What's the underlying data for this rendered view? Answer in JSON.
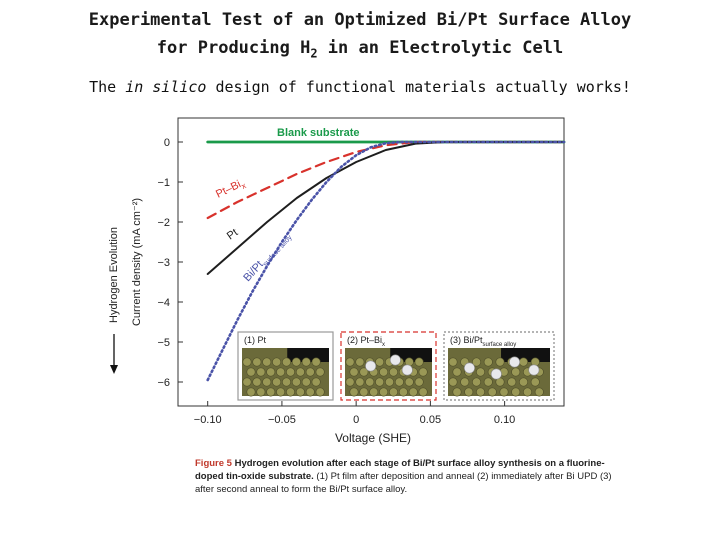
{
  "slide": {
    "title_line1": "Experimental Test of an  Optimized  Bi/Pt Surface Alloy",
    "title_line2_pre": "for Producing H",
    "title_line2_sub": "2",
    "title_line2_post": " in an Electrolytic Cell",
    "subtitle_pre": "The ",
    "subtitle_em": "in silico",
    "subtitle_post": "  design of functional materials actually works!",
    "side_label": "Hydrogen Evolution"
  },
  "caption": {
    "fig_label": "Figure 5",
    "title": " Hydrogen evolution after each stage of Bi/Pt surface alloy synthesis on a fluorine-doped tin-oxide substrate.",
    "body": " (1) Pt film after deposition and anneal (2) immediately after Bi UPD (3) after second anneal to form the Bi/Pt surface alloy."
  },
  "colors": {
    "blank": "#1a9a4a",
    "ptbi": "#d8322c",
    "pt": "#1e1e1e",
    "bipt": "#4a53a8",
    "panel_bg": "#6b6a3a"
  },
  "insets": [
    {
      "label": "(1) Pt",
      "label_sub": "",
      "border": "solid-gray"
    },
    {
      "label": "(2) Pt–Bi",
      "label_sub": "x",
      "border": "dashed-red"
    },
    {
      "label": "(3) Bi/Pt",
      "label_sub": "surface alloy",
      "border": "dotted-gray"
    }
  ],
  "chart_data": {
    "type": "line",
    "xlabel": "Voltage (SHE)",
    "ylabel": "Current density (mA cm⁻²)",
    "xlim": [
      -0.12,
      0.14
    ],
    "ylim": [
      -6.6,
      0.6
    ],
    "xticks": [
      -0.1,
      -0.05,
      0,
      0.05,
      0.1
    ],
    "xtick_labels": [
      "−0.10",
      "−0.05",
      "0",
      "0.05",
      "0.10"
    ],
    "yticks": [
      0,
      -1,
      -2,
      -3,
      -4,
      -5,
      -6
    ],
    "ytick_labels": [
      "0",
      "−1",
      "−2",
      "−3",
      "−4",
      "−5",
      "−6"
    ],
    "grid": false,
    "series": [
      {
        "name": "Blank substrate",
        "style": "solid",
        "x": [
          -0.1,
          -0.05,
          0,
          0.05,
          0.1,
          0.14
        ],
        "y": [
          0,
          0,
          0,
          0,
          0,
          0
        ]
      },
      {
        "name": "Pt–Bi",
        "name_sub": "x",
        "style": "dashed",
        "x": [
          -0.1,
          -0.08,
          -0.06,
          -0.04,
          -0.02,
          0,
          0.02,
          0.04,
          0.06,
          0.1,
          0.14
        ],
        "y": [
          -1.9,
          -1.5,
          -1.15,
          -0.8,
          -0.5,
          -0.25,
          -0.08,
          0.0,
          0.0,
          0.0,
          0.0
        ]
      },
      {
        "name": "Pt",
        "style": "solid",
        "x": [
          -0.1,
          -0.08,
          -0.06,
          -0.04,
          -0.02,
          0,
          0.02,
          0.04,
          0.06,
          0.1,
          0.14
        ],
        "y": [
          -3.3,
          -2.65,
          -2.0,
          -1.4,
          -0.9,
          -0.5,
          -0.2,
          -0.04,
          0.0,
          0.0,
          0.0
        ]
      },
      {
        "name": "Bi/Pt",
        "name_sub": "surface alloy",
        "style": "dotted",
        "x": [
          -0.1,
          -0.09,
          -0.08,
          -0.07,
          -0.06,
          -0.05,
          -0.04,
          -0.03,
          -0.02,
          -0.01,
          0,
          0.01,
          0.02,
          0.03,
          0.04,
          0.05,
          0.1,
          0.14
        ],
        "y": [
          -5.95,
          -5.2,
          -4.45,
          -3.75,
          -3.1,
          -2.5,
          -1.95,
          -1.45,
          -1.0,
          -0.62,
          -0.33,
          -0.13,
          -0.03,
          0.0,
          0.0,
          0.0,
          0.0,
          0.0
        ]
      }
    ]
  }
}
